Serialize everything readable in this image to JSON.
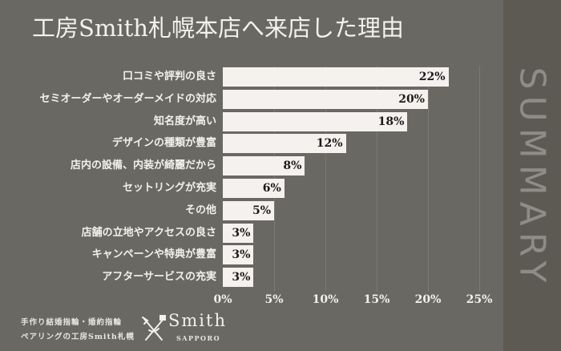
{
  "title": "工房Smith札幌本店へ来店した理由",
  "side_label": "SUMMARY",
  "chart_data": {
    "type": "bar",
    "orientation": "horizontal",
    "title": "工房Smith札幌本店へ来店した理由",
    "categories": [
      "口コミや評判の良さ",
      "セミオーダーやオーダーメイドの対応",
      "知名度が高い",
      "デザインの種類が豊富",
      "店内の設備、内装が綺麗だから",
      "セットリングが充実",
      "その他",
      "店舗の立地やアクセスの良さ",
      "キャンペーンや特典が豊富",
      "アフターサービスの充実"
    ],
    "values": [
      22,
      20,
      18,
      12,
      8,
      6,
      5,
      3,
      3,
      3
    ],
    "value_labels": [
      "22%",
      "20%",
      "18%",
      "12%",
      "8%",
      "6%",
      "5%",
      "3%",
      "3%",
      "3%"
    ],
    "xlabel": "",
    "ylabel": "",
    "xlim": [
      0,
      25
    ],
    "x_ticks": [
      "0%",
      "5%",
      "10%",
      "15%",
      "20%",
      "25%"
    ],
    "grid": true,
    "legend": "none",
    "bar_color": "#f4f1ef",
    "background_color": "#6a6863"
  },
  "footer": {
    "line1": "手作り結婚指輪・婚約指輪",
    "line2": "ペアリングの工房Smith札幌",
    "logo_word": "Smith",
    "logo_sub": "SAPPORO"
  }
}
